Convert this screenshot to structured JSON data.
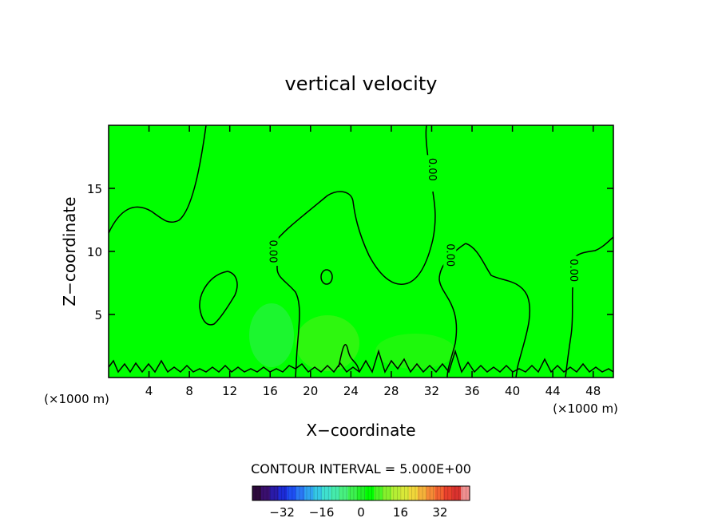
{
  "chart_data": {
    "type": "heatmap",
    "title": "vertical velocity",
    "xlabel": "X−coordinate",
    "ylabel": "Z−coordinate",
    "x_unit_left": "(×1000 m)",
    "x_unit_right": "(×1000 m)",
    "xlim": [
      0,
      50
    ],
    "ylim": [
      0,
      20
    ],
    "x_ticks": [
      4,
      8,
      12,
      16,
      20,
      24,
      28,
      32,
      36,
      40,
      44,
      48
    ],
    "y_ticks": [
      5,
      10,
      15
    ],
    "field_color": "#00ff00",
    "contour_interval_text": "CONTOUR INTERVAL = 5.000E+00",
    "contour_labels": [
      {
        "text": "0.00",
        "x": 16.2,
        "y": 10.0
      },
      {
        "text": "0.00",
        "x": 32.0,
        "y": 16.5
      },
      {
        "text": "0.00",
        "x": 33.8,
        "y": 9.7
      },
      {
        "text": "0.00",
        "x": 46.0,
        "y": 8.5
      }
    ],
    "colorbar": {
      "min": -44,
      "max": 44,
      "ticks": [
        -32,
        -16,
        0,
        16,
        32
      ],
      "tick_labels": [
        "−32",
        "−16",
        "0",
        "16",
        "32"
      ],
      "colors": [
        "#2d0a3c",
        "#3a0f6e",
        "#2a1aa8",
        "#1c2bd6",
        "#1e4ef2",
        "#2a78f5",
        "#2fa3f0",
        "#35c8e6",
        "#3fe0cf",
        "#45ebab",
        "#48f080",
        "#3df050",
        "#22f028",
        "#00ff00",
        "#4cf524",
        "#86f02c",
        "#b5ee34",
        "#d9e838",
        "#f0d63a",
        "#f5b23a",
        "#f58a36",
        "#f26230",
        "#e8402c",
        "#d9322e",
        "#f09090"
      ]
    }
  }
}
